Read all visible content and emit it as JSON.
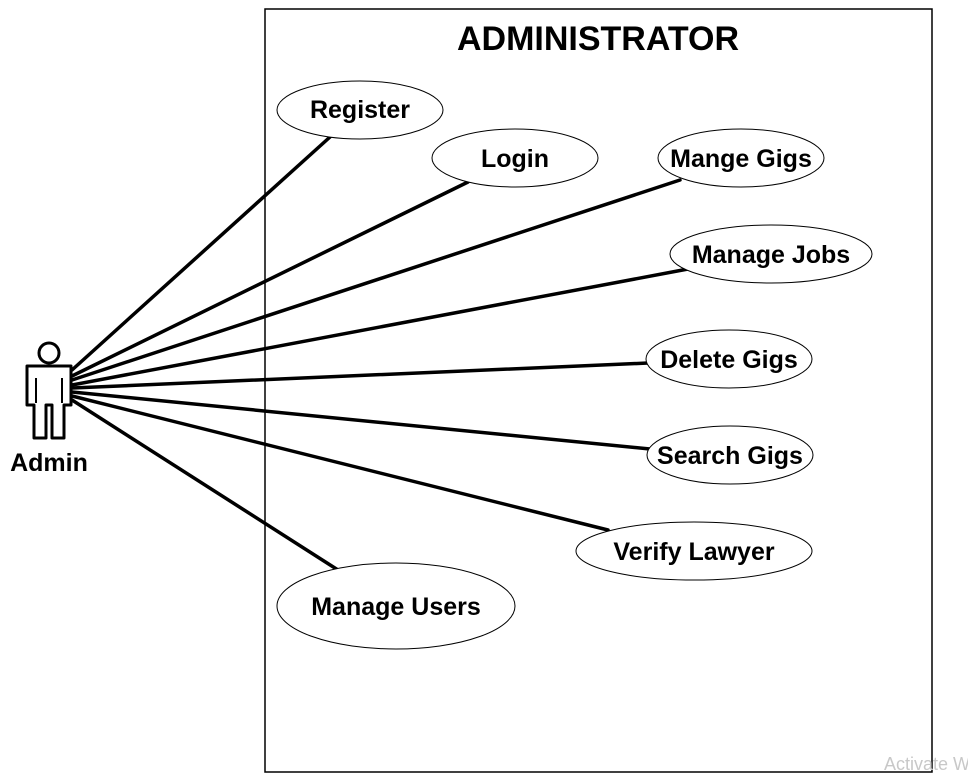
{
  "system": {
    "title": "ADMINISTRATOR"
  },
  "actor": {
    "label": "Admin"
  },
  "use_cases": {
    "register": "Register",
    "login": "Login",
    "manage_gigs": "Mange Gigs",
    "manage_jobs": "Manage Jobs",
    "delete_gigs": "Delete Gigs",
    "search_gigs": "Search Gigs",
    "verify_lawyer": "Verify Lawyer",
    "manage_users": "Manage Users"
  },
  "watermark": {
    "text": "Activate W"
  }
}
